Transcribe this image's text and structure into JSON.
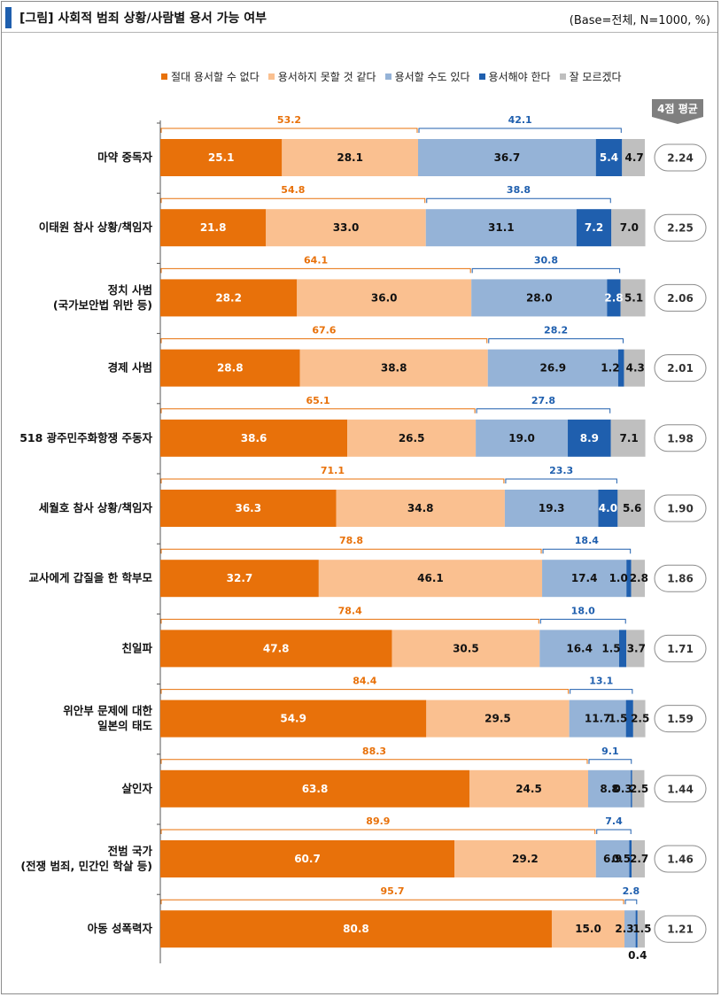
{
  "header": {
    "title": "[그림] 사회적 범죄 상황/사람별 용서 가능 여부",
    "base": "(Base=전체, N=1000, %)"
  },
  "avg_header": "4점 평균",
  "colors": {
    "s1": "#e8710a",
    "s2": "#fac090",
    "s3": "#95b3d7",
    "s4": "#1f5fae",
    "s5": "#bfbfbf",
    "neg_bracket": "#e8710a",
    "pos_bracket": "#1f5fae"
  },
  "chart_data": {
    "type": "bar",
    "orientation": "horizontal",
    "stacked": true,
    "legend_position": "top",
    "xlim": [
      0,
      100
    ],
    "series": [
      {
        "name": "절대 용서할 수 없다",
        "values": [
          25.1,
          21.8,
          28.2,
          28.8,
          38.6,
          36.3,
          32.7,
          47.8,
          54.9,
          63.8,
          60.7,
          80.8
        ]
      },
      {
        "name": "용서하지 못할 것 같다",
        "values": [
          28.1,
          33.0,
          36.0,
          38.8,
          26.5,
          34.8,
          46.1,
          30.5,
          29.5,
          24.5,
          29.2,
          15.0
        ]
      },
      {
        "name": "용서할 수도 있다",
        "values": [
          36.7,
          31.1,
          28.0,
          26.9,
          19.0,
          19.3,
          17.4,
          16.4,
          11.7,
          8.8,
          6.9,
          2.3
        ]
      },
      {
        "name": "용서해야 한다",
        "values": [
          5.4,
          7.2,
          2.8,
          1.2,
          8.9,
          4.0,
          1.0,
          1.5,
          1.5,
          0.3,
          0.5,
          0.4
        ]
      },
      {
        "name": "잘 모르겠다",
        "values": [
          4.7,
          7.0,
          5.1,
          4.3,
          7.1,
          5.6,
          2.8,
          3.7,
          2.5,
          2.5,
          2.7,
          1.5
        ]
      }
    ],
    "categories": [
      {
        "lines": [
          "마약 중독자"
        ]
      },
      {
        "lines": [
          "이태원 참사 상황/책임자"
        ]
      },
      {
        "lines": [
          "정치 사범",
          "(국가보안법 위반 등)"
        ]
      },
      {
        "lines": [
          "경제 사범"
        ]
      },
      {
        "lines": [
          "518 광주민주화항쟁 주동자"
        ]
      },
      {
        "lines": [
          "세월호 참사 상황/책임자"
        ]
      },
      {
        "lines": [
          "교사에게 갑질을 한 학부모"
        ]
      },
      {
        "lines": [
          "친일파"
        ]
      },
      {
        "lines": [
          "위안부 문제에 대한",
          "일본의 태도"
        ]
      },
      {
        "lines": [
          "살인자"
        ]
      },
      {
        "lines": [
          "전범 국가",
          "(전쟁 범죄, 민간인 학살 등)"
        ]
      },
      {
        "lines": [
          "아동 성폭력자"
        ]
      }
    ],
    "negative_sum": [
      53.2,
      54.8,
      64.1,
      67.6,
      65.1,
      71.1,
      78.8,
      78.4,
      84.4,
      88.3,
      89.9,
      95.7
    ],
    "positive_sum": [
      42.1,
      38.8,
      30.8,
      28.2,
      27.8,
      23.3,
      18.4,
      18.0,
      13.1,
      9.1,
      7.4,
      2.8
    ],
    "avg_4pt": [
      2.24,
      2.25,
      2.06,
      2.01,
      1.98,
      1.9,
      1.86,
      1.71,
      1.59,
      1.44,
      1.46,
      1.21
    ]
  }
}
